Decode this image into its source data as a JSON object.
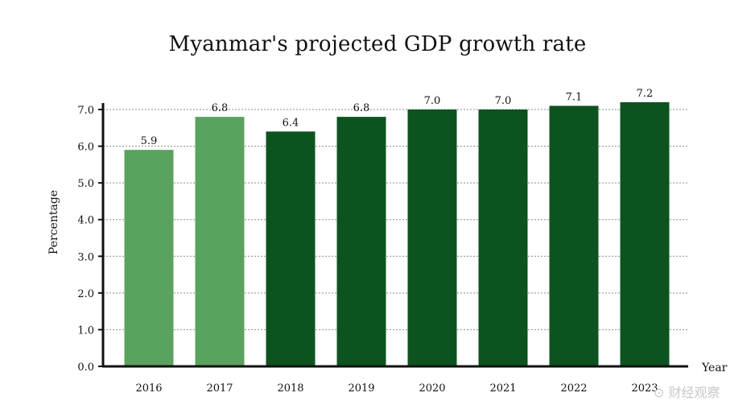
{
  "chart_data": {
    "type": "bar",
    "title": "Myanmar's projected GDP growth rate",
    "xlabel": "Year",
    "ylabel": "Percentage",
    "categories": [
      "2016",
      "2017",
      "2018",
      "2019",
      "2020",
      "2021",
      "2022",
      "2023"
    ],
    "values": [
      5.9,
      6.8,
      6.4,
      6.8,
      7.0,
      7.0,
      7.1,
      7.2
    ],
    "value_labels": [
      "5.9",
      "6.8",
      "6.4",
      "6.8",
      "7.0",
      "7.0",
      "7.1",
      "7.2"
    ],
    "bar_colors": [
      "#5aa35e",
      "#5aa35e",
      "#0d5320",
      "#0d5320",
      "#0d5320",
      "#0d5320",
      "#0d5320",
      "#0d5320"
    ],
    "ylim": [
      0,
      7.0
    ],
    "yticks": [
      "0.0",
      "1.0",
      "2.0",
      "3.0",
      "4.0",
      "5.0",
      "6.0",
      "7.0"
    ],
    "grid": "horizontal dashed",
    "legend": "none"
  },
  "watermark": "⊙ 财经观察"
}
